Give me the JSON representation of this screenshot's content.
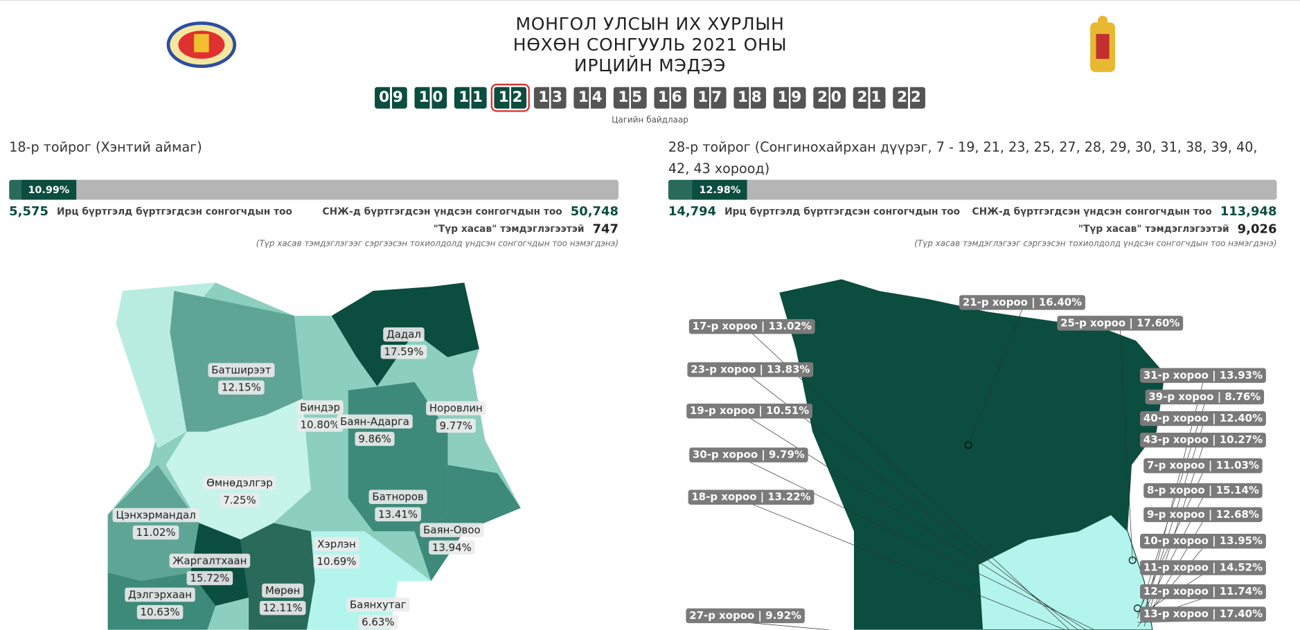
{
  "header": {
    "title_lines": [
      "МОНГОЛ УЛСЫН ИХ ХУРЛЫН",
      "НӨХӨН СОНГУУЛЬ 2021 ОНЫ",
      "ИРЦИЙН МЭДЭЭ"
    ],
    "hours": [
      "09",
      "10",
      "11",
      "12",
      "13",
      "14",
      "15",
      "16",
      "17",
      "18",
      "19",
      "20",
      "21",
      "22"
    ],
    "hours_caption": "Цагийн байдлаар"
  },
  "districts": [
    {
      "title": "18-р тойрог (Хэнтий аймаг)",
      "turnout": {
        "value": 10.99,
        "label": "10.99%"
      },
      "registered": "5,575",
      "registered_label": "Ирц бүртгэлд бүртгэгдсэн сонгогчдын тоо",
      "total_label": "СНЖ-д бүртгэгдсэн үндсэн сонгогчдын тоо",
      "total": "50,748",
      "removed_label": "\"Түр хасав\" тэмдэглэгээтэй",
      "removed": "747",
      "note": "(Түр хасав тэмдэглэгээг сэргээсэн тохиолдолд үндсэн сонгогчдын тоо нэмэгдэнэ)",
      "map_labels": [
        {
          "name": "Дадал",
          "pct": "17.59%"
        },
        {
          "name": "Батширээт",
          "pct": "12.15%"
        },
        {
          "name": "Биндэр",
          "pct": "10.80%"
        },
        {
          "name": "Баян-Адарга",
          "pct": "9.86%"
        },
        {
          "name": "Норовлин",
          "pct": "9.77%"
        },
        {
          "name": "Өмнөдэлгэр",
          "pct": "7.25%"
        },
        {
          "name": "Батноров",
          "pct": "13.41%"
        },
        {
          "name": "Цэнхэрмандал",
          "pct": "11.02%"
        },
        {
          "name": "Баян-Овоо",
          "pct": "13.94%"
        },
        {
          "name": "Хэрлэн",
          "pct": "10.69%"
        },
        {
          "name": "Жаргалтхаан",
          "pct": "15.72%"
        },
        {
          "name": "Дэлгэрхаан",
          "pct": "10.63%"
        },
        {
          "name": "Мөрөн",
          "pct": "12.11%"
        },
        {
          "name": "Баянхутаг",
          "pct": "6.63%"
        }
      ]
    },
    {
      "title": "28-р тойрог (Сонгинохайрхан дүүрэг, 7 - 19, 21, 23, 25, 27, 28, 29, 30, 31, 38, 39, 40, 42, 43 хороод)",
      "turnout": {
        "value": 12.98,
        "label": "12.98%"
      },
      "registered": "14,794",
      "registered_label": "Ирц бүртгэлд бүртгэгдсэн сонгогчдын тоо",
      "total_label": "СНЖ-д бүртгэгдсэн үндсэн сонгогчдын тоо",
      "total": "113,948",
      "removed_label": "\"Түр хасав\" тэмдэглэгээтэй",
      "removed": "9,026",
      "note": "(Түр хасав тэмдэглэгээг сэргээсэн тохиолдолд үндсэн сонгогчдын тоо нэмэгдэнэ)",
      "map_labels": [
        "21-р хороо | 16.40%",
        "25-р хороо | 17.60%",
        "17-р хороо | 13.02%",
        "23-р хороо | 13.83%",
        "19-р хороо | 10.51%",
        "30-р хороо | 9.79%",
        "18-р хороо | 13.22%",
        "27-р хороо | 9.92%",
        "31-р хороо | 13.93%",
        "39-р хороо | 8.76%",
        "40-р хороо | 12.40%",
        "43-р хороо | 10.27%",
        "7-р хороо | 11.03%",
        "8-р хороо | 15.14%",
        "9-р хороо | 12.68%",
        "10-р хороо | 13.95%",
        "11-р хороо | 14.52%",
        "12-р хороо | 11.74%",
        "13-р хороо | 17.40%"
      ]
    }
  ]
}
